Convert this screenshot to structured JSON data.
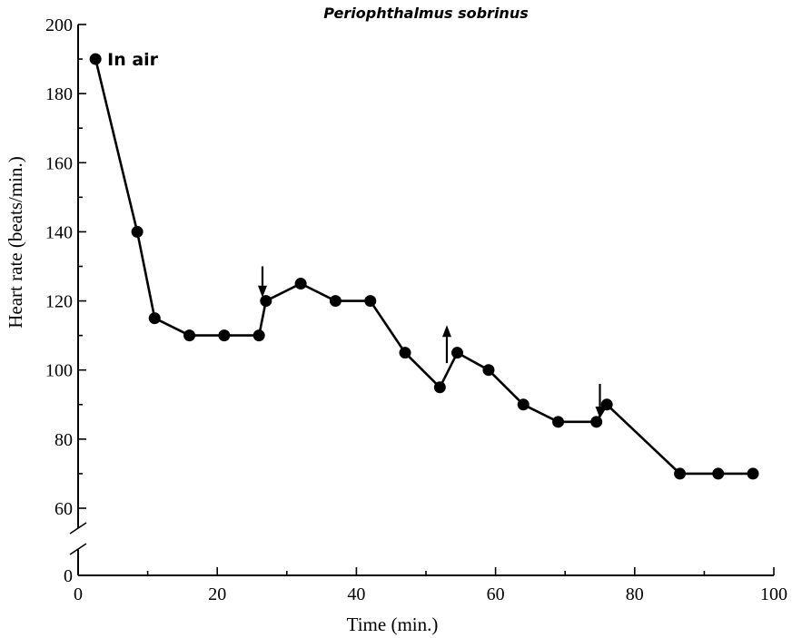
{
  "chart_data": {
    "type": "line",
    "title": "Periophthalmus sobrinus",
    "xlabel": "Time (min.)",
    "ylabel": "Heart rate (beats/min.)",
    "xlim": [
      0,
      100
    ],
    "ylim": [
      0,
      200
    ],
    "axis_break": [
      0,
      50
    ],
    "x_ticks": [
      0,
      20,
      40,
      60,
      80,
      100
    ],
    "x_minor_ticks": [
      10,
      30,
      50,
      70,
      90
    ],
    "y_ticks": [
      0,
      60,
      80,
      100,
      120,
      140,
      160,
      180,
      200
    ],
    "y_minor_ticks": [
      70,
      90,
      110,
      130,
      150,
      170,
      190
    ],
    "grid": false,
    "series": [
      {
        "x": [
          2.5,
          8.5,
          11,
          16,
          21,
          26,
          27,
          32,
          37,
          42,
          47,
          52,
          54.5,
          59,
          64,
          69,
          74.5,
          76,
          86.5,
          92,
          97
        ],
        "y": [
          190,
          140,
          115,
          110,
          110,
          110,
          120,
          125,
          120,
          120,
          105,
          95,
          105,
          100,
          90,
          85,
          85,
          90,
          70,
          70,
          70
        ]
      }
    ],
    "annotations": [
      {
        "text": "In air",
        "x": 2.5,
        "y": 190
      }
    ],
    "arrows": [
      {
        "x": 26.5,
        "direction": "down",
        "y_from": 130,
        "y_to": 121
      },
      {
        "x": 53,
        "direction": "up",
        "y_from": 102,
        "y_to": 113
      },
      {
        "x": 75,
        "direction": "down",
        "y_from": 96,
        "y_to": 86
      }
    ],
    "colors": {
      "line": "#000000",
      "marker": "#000000"
    }
  }
}
